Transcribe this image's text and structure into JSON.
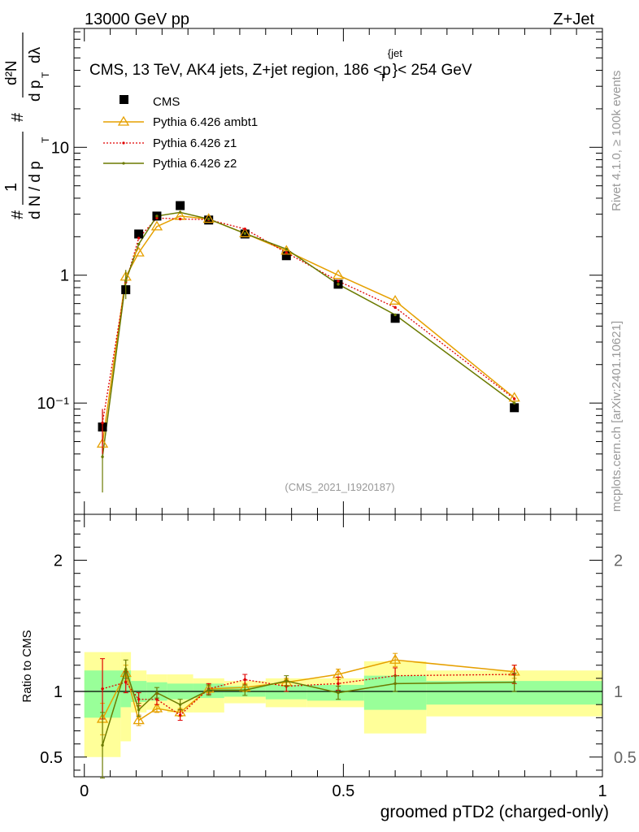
{
  "header": {
    "energy_label": "13000 GeV pp",
    "process_label": "Z+Jet"
  },
  "side_labels": {
    "rivet": "Rivet 4.1.0, ≥ 100k events",
    "mcplots": "mcplots.cern.ch [arXiv:2401.10621]"
  },
  "colors": {
    "cms": "#000000",
    "ambt1": "#e6a000",
    "z1": "#e00000",
    "z2": "#6b7a00",
    "band_inner": "#99ff99",
    "band_outer": "#ffff99",
    "watermark": "#999999"
  },
  "chart_data": [
    {
      "type": "line",
      "name": "main",
      "title": "CMS, 13 TeV, AK4 jets, Z+jet region, 186 <p_T^{jet}< 254 GeV",
      "title_parts": {
        "prefix": "CMS, 13 TeV, AK4 jets, Z+jet region, 186 <",
        "p": "p",
        "sub": "T",
        "sup": "{jet",
        "suffix": "}< 254 GeV"
      },
      "ylabel": "1/dN/dp_T  d²N/dp_T dλ",
      "ylabel_parts": {
        "one": "1",
        "dn": "d N / d p",
        "d2n": "d²N",
        "dpdl": "d p",
        "dl": "dλ",
        "t": "T",
        "hash": "#"
      },
      "yscale": "log",
      "ylim": [
        0.0135,
        85
      ],
      "xlim": [
        -0.02,
        1.0
      ],
      "y_ticks": [
        {
          "value": 0.1,
          "label": "10⁻¹"
        },
        {
          "value": 1,
          "label": "1"
        },
        {
          "value": 10,
          "label": "10"
        }
      ],
      "watermark": "(CMS_2021_I1920187)",
      "legend_position": "top-left",
      "legend": [
        "CMS",
        "Pythia 6.426 ambt1",
        "Pythia 6.426 z1",
        "Pythia 6.426 z2"
      ],
      "x": [
        0.035,
        0.08,
        0.105,
        0.14,
        0.185,
        0.24,
        0.31,
        0.39,
        0.49,
        0.6,
        0.83
      ],
      "series": [
        {
          "name": "CMS",
          "values": [
            0.065,
            0.77,
            2.1,
            2.9,
            3.5,
            2.7,
            2.1,
            1.42,
            0.85,
            0.46,
            0.092
          ]
        },
        {
          "name": "Pythia 6.426 ambt1",
          "values": [
            0.048,
            0.97,
            1.5,
            2.4,
            2.9,
            2.75,
            2.12,
            1.55,
            1.0,
            0.63,
            0.11
          ]
        },
        {
          "name": "Pythia 6.426 z1",
          "values": [
            0.07,
            0.88,
            1.95,
            2.8,
            2.75,
            2.72,
            2.3,
            1.5,
            0.9,
            0.56,
            0.108
          ]
        },
        {
          "name": "Pythia 6.426 z2",
          "values": [
            0.038,
            0.9,
            1.75,
            2.9,
            3.1,
            2.75,
            2.12,
            1.6,
            0.85,
            0.49,
            0.1
          ]
        }
      ]
    },
    {
      "type": "line",
      "name": "ratio",
      "ylabel": "Ratio to CMS",
      "xlabel": "groomed pTD2 (charged-only)",
      "ylim": [
        0.35,
        2.35
      ],
      "xlim": [
        -0.02,
        1.0
      ],
      "x_ticks": [
        {
          "value": 0,
          "label": "0"
        },
        {
          "value": 0.5,
          "label": "0.5"
        },
        {
          "value": 1,
          "label": "1"
        }
      ],
      "y_ticks": [
        {
          "value": 0.5,
          "label": "0.5"
        },
        {
          "value": 1,
          "label": "1"
        },
        {
          "value": 2,
          "label": "2"
        }
      ],
      "bins": [
        {
          "lo": 0.0,
          "hi": 0.07,
          "inner": [
            0.8,
            1.16
          ],
          "outer": [
            0.5,
            1.3
          ]
        },
        {
          "lo": 0.07,
          "hi": 0.09,
          "inner": [
            0.88,
            1.16
          ],
          "outer": [
            0.62,
            1.3
          ]
        },
        {
          "lo": 0.09,
          "hi": 0.12,
          "inner": [
            0.92,
            1.08
          ],
          "outer": [
            0.84,
            1.16
          ]
        },
        {
          "lo": 0.12,
          "hi": 0.16,
          "inner": [
            0.93,
            1.07
          ],
          "outer": [
            0.86,
            1.13
          ]
        },
        {
          "lo": 0.16,
          "hi": 0.21,
          "inner": [
            0.94,
            1.06
          ],
          "outer": [
            0.84,
            1.13
          ]
        },
        {
          "lo": 0.21,
          "hi": 0.27,
          "inner": [
            0.95,
            1.06
          ],
          "outer": [
            0.84,
            1.1
          ]
        },
        {
          "lo": 0.27,
          "hi": 0.35,
          "inner": [
            0.96,
            1.04
          ],
          "outer": [
            0.91,
            1.08
          ]
        },
        {
          "lo": 0.35,
          "hi": 0.43,
          "inner": [
            0.94,
            1.05
          ],
          "outer": [
            0.88,
            1.1
          ]
        },
        {
          "lo": 0.43,
          "hi": 0.54,
          "inner": [
            0.93,
            1.05
          ],
          "outer": [
            0.88,
            1.1
          ]
        },
        {
          "lo": 0.54,
          "hi": 0.66,
          "inner": [
            0.86,
            1.12
          ],
          "outer": [
            0.68,
            1.23
          ]
        },
        {
          "lo": 0.66,
          "hi": 1.0,
          "inner": [
            0.9,
            1.08
          ],
          "outer": [
            0.81,
            1.16
          ]
        }
      ],
      "x": [
        0.035,
        0.08,
        0.105,
        0.14,
        0.185,
        0.24,
        0.31,
        0.39,
        0.49,
        0.6,
        0.83
      ],
      "series": [
        {
          "name": "Pythia 6.426 ambt1",
          "values": [
            0.79,
            1.14,
            0.78,
            0.87,
            0.84,
            1.02,
            1.03,
            1.07,
            1.13,
            1.24,
            1.15
          ],
          "errors": [
            0.12,
            0.06,
            0.04,
            0.03,
            0.03,
            0.03,
            0.03,
            0.03,
            0.04,
            0.05,
            0.05
          ]
        },
        {
          "name": "Pythia 6.426 z1",
          "values": [
            1.02,
            1.07,
            0.94,
            0.94,
            0.82,
            1.02,
            1.09,
            1.04,
            1.06,
            1.12,
            1.13
          ],
          "errors": [
            0.23,
            0.08,
            0.05,
            0.04,
            0.04,
            0.04,
            0.04,
            0.04,
            0.05,
            0.06,
            0.07
          ]
        },
        {
          "name": "Pythia 6.426 z2",
          "values": [
            0.59,
            1.17,
            0.86,
            0.99,
            0.9,
            1.01,
            1.01,
            1.08,
            0.99,
            1.06,
            1.07
          ],
          "errors": [
            0.25,
            0.07,
            0.05,
            0.04,
            0.04,
            0.04,
            0.04,
            0.04,
            0.05,
            0.06,
            0.07
          ]
        }
      ]
    }
  ]
}
